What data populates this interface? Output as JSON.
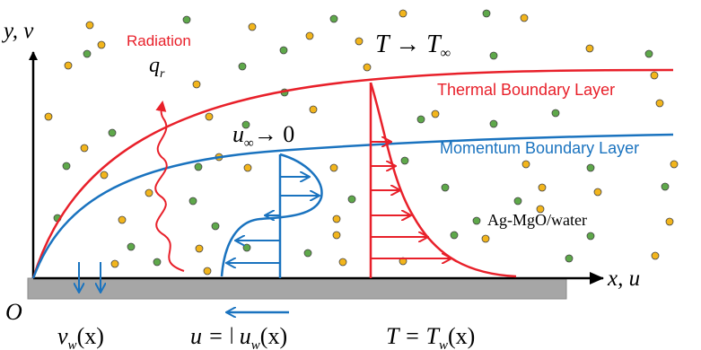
{
  "colors": {
    "thermal": "#e8202a",
    "momentum": "#1a73bf",
    "axis": "#000000",
    "wall": "#a6a6a6",
    "wall_stroke": "#8a8a8a",
    "particle_orange": "#f2b51c",
    "particle_green": "#5ea84a"
  },
  "labels": {
    "y_axis_main": "y, v",
    "x_axis_main": "x, u",
    "origin": "O",
    "radiation": "Radiation",
    "qr_main": "q",
    "qr_sub": "r",
    "t_inf_left": "T → T",
    "t_inf_sub": "∞",
    "thermal_bl": "Thermal Boundary Layer",
    "momentum_bl": "Momentum Boundary Layer",
    "u_inf_main": "u",
    "u_inf_sub": "∞",
    "u_inf_right": "→ 0",
    "nanofluid": "Ag-MgO/water",
    "vw_main": "v",
    "vw_sub": "w",
    "vw_arg": "(x)",
    "uw_left": "u = ",
    "uw_bar": "ǀ",
    "uw_main": "u",
    "uw_sub": "w",
    "uw_arg": "(x)",
    "tw_left": "T = T",
    "tw_sub": "w",
    "tw_arg": "(x)"
  },
  "icons": {
    "particle": "nanoparticle-dot",
    "arrow": "arrow-icon"
  }
}
